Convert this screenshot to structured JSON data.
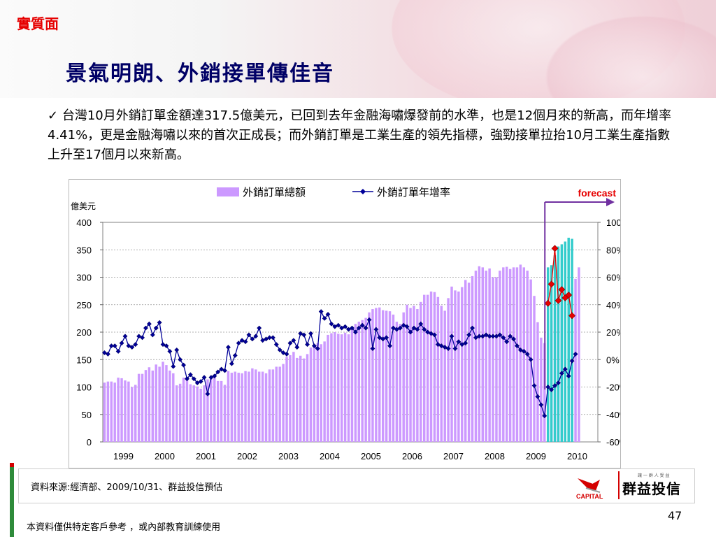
{
  "header": {
    "section_label": "實質面",
    "title": "景氣明朗、外銷接單傳佳音"
  },
  "bullet": {
    "check": "✓",
    "text": "台灣10月外銷訂單金額達317.5億美元，已回到去年金融海嘯爆發前的水準，也是12個月來的新高，而年增率4.41%，更是金融海嘯以來的首次正成長；而外銷訂單是工業生產的領先指標，強勁接單拉抬10月工業生產指數上升至17個月以來新高。"
  },
  "footer": {
    "source": "資料來源:經濟部、2009/10/31、群益投信預估",
    "page_number": "47",
    "disclaimer": "本資料僅供特定客戶參考 ，或內部教育訓練使用",
    "logo_capital": "CAPITAL",
    "logo_name": "群益投信",
    "logo_tagline": "讓 一 群 人 受 益"
  },
  "colors": {
    "bar": "#cc99ff",
    "forecast_bar": "#33cccc",
    "line": "#000099",
    "forecast_line": "#e60000",
    "forecast_arrow": "#7030a0",
    "forecast_text": "#e60000",
    "title": "#000066",
    "section": "#e60000"
  },
  "chart_data": {
    "type": "bar+line",
    "left_unit": "億美元",
    "left_ticks": [
      "400",
      "350",
      "300",
      "250",
      "200",
      "150",
      "100",
      "50",
      "0"
    ],
    "right_ticks": [
      "100%",
      "80%",
      "60%",
      "40%",
      "20%",
      "0%",
      "-20%",
      "-40%",
      "-60%"
    ],
    "ylim_left": [
      0,
      400
    ],
    "ylim_right": [
      -60,
      100
    ],
    "x_labels": [
      "1999",
      "2000",
      "2001",
      "2002",
      "2003",
      "2004",
      "2005",
      "2006",
      "2007",
      "2008",
      "2009",
      "2010"
    ],
    "legend": {
      "bar": "外銷訂單總額",
      "line": "外銷訂單年增率",
      "forecast": "forecast"
    },
    "series": [
      {
        "name": "外銷訂單總額",
        "type": "bar",
        "start": "1999-01",
        "values": [
          108,
          110,
          110,
          108,
          117,
          116,
          112,
          110,
          100,
          104,
          124,
          124,
          131,
          136,
          130,
          141,
          137,
          146,
          140,
          130,
          125,
          103,
          106,
          117,
          113,
          105,
          103,
          101,
          97,
          103,
          114,
          117,
          118,
          111,
          111,
          104,
          129,
          126,
          128,
          126,
          125,
          129,
          128,
          134,
          132,
          128,
          128,
          125,
          132,
          132,
          137,
          137,
          142,
          155,
          158,
          164,
          153,
          157,
          152,
          160,
          172,
          175,
          180,
          178,
          183,
          195,
          198,
          200,
          197,
          196,
          199,
          196,
          206,
          215,
          219,
          222,
          226,
          236,
          242,
          244,
          245,
          240,
          239,
          238,
          232,
          219,
          215,
          236,
          250,
          244,
          248,
          242,
          255,
          268,
          268,
          274,
          273,
          264,
          248,
          239,
          262,
          283,
          276,
          274,
          282,
          295,
          290,
          302,
          312,
          320,
          318,
          312,
          316,
          300,
          300,
          312,
          318,
          319,
          315,
          318,
          318,
          323,
          318,
          312,
          296,
          266,
          218,
          190,
          180,
          198,
          221,
          244,
          262,
          257,
          280,
          286,
          281,
          297,
          318
        ]
      },
      {
        "name": "外銷訂單年增率",
        "type": "line",
        "start": "1999-01",
        "values": [
          5,
          4,
          10,
          10,
          6,
          12,
          17,
          10,
          9,
          11,
          17,
          16,
          23,
          26,
          18,
          23,
          27,
          11,
          10,
          6,
          -5,
          7,
          0,
          -4,
          -14,
          -11,
          -14,
          -17,
          -16,
          -13,
          -25,
          -13,
          -12,
          -9,
          -7,
          -8,
          9,
          -3,
          3,
          12,
          14,
          13,
          18,
          15,
          17,
          23,
          14,
          15,
          16,
          16,
          11,
          7,
          5,
          4,
          12,
          14,
          9,
          19,
          18,
          11,
          19,
          10,
          8,
          35,
          30,
          33,
          26,
          24,
          25,
          23,
          24,
          22,
          23,
          20,
          23,
          25,
          23,
          29,
          8,
          22,
          16,
          15,
          16,
          10,
          23,
          22,
          23,
          25,
          24,
          20,
          23,
          22,
          26,
          22,
          20,
          19,
          18,
          11,
          10,
          9,
          8,
          17,
          8,
          13,
          11,
          12,
          18,
          23,
          16,
          17,
          17,
          18,
          17,
          17,
          17,
          18,
          16,
          13,
          17,
          15,
          10,
          7,
          6,
          4,
          0,
          -19,
          -27,
          -33,
          -41,
          -20,
          -22,
          -19,
          -17,
          -10,
          -7,
          -12,
          -1,
          4
        ]
      },
      {
        "name": "外銷訂單總額",
        "type": "bar",
        "forecast": true,
        "start": "2009-10",
        "values": [
          318,
          322,
          340,
          356,
          360,
          365,
          372,
          370
        ]
      },
      {
        "name": "外銷訂單年增率",
        "type": "line",
        "forecast": true,
        "start": "2009-10",
        "values": [
          41,
          55,
          81,
          43,
          51,
          45,
          47,
          32
        ]
      }
    ]
  }
}
